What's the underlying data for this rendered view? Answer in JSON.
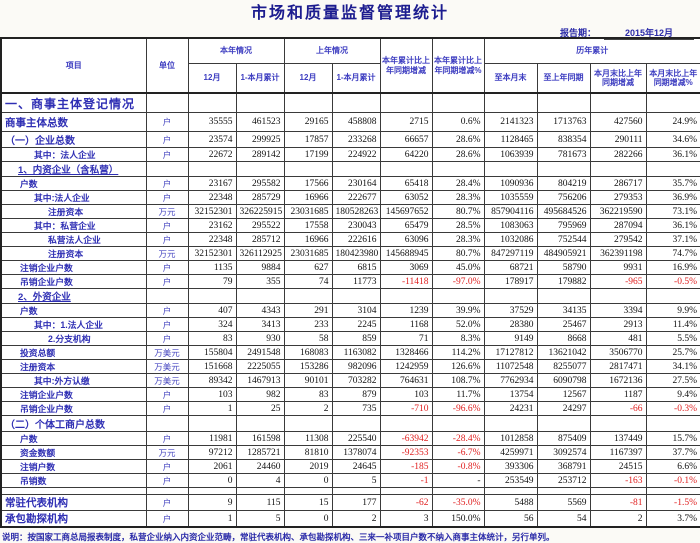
{
  "title": "市场和质量监督管理统计",
  "report_period": {
    "label": "报告期：",
    "value": "2015年12月"
  },
  "header": {
    "item": "项目",
    "unit": "单位",
    "this_year": "本年情况",
    "last_year": "上年情况",
    "month_this": "12月",
    "cum_this": "1-本月累计",
    "month_last": "12月",
    "cum_last": "1-本月累计",
    "yoy_diff": "本年累计比上年同期增减",
    "yoy_pct": "本年累计比上年同期增减%",
    "historical": "历年累计",
    "to_month_end": "至本月末",
    "to_last_same": "至上年同期",
    "me_diff": "本月末比上年同期增减",
    "me_pct": "本月末比上年同期增减%"
  },
  "table": {
    "rows": [
      {
        "type": "section",
        "label": "一、商事主体登记情况",
        "unit": "",
        "vals": [
          "",
          "",
          "",
          "",
          "",
          "",
          "",
          "",
          "",
          ""
        ]
      },
      {
        "type": "total",
        "label": "商事主体总数",
        "unit": "户",
        "vals": [
          "35555",
          "461523",
          "29165",
          "458808",
          "2715",
          "0.6%",
          "2141323",
          "1713763",
          "427560",
          "24.9%"
        ]
      },
      {
        "type": "sub1",
        "label": "（一）企业总数",
        "unit": "户",
        "vals": [
          "23574",
          "299925",
          "17857",
          "233268",
          "66657",
          "28.6%",
          "1128465",
          "838354",
          "290111",
          "34.6%"
        ]
      },
      {
        "type": "item2",
        "label": "其中：法人企业",
        "unit": "户",
        "vals": [
          "22672",
          "289142",
          "17199",
          "224922",
          "64220",
          "28.6%",
          "1063939",
          "781673",
          "282266",
          "36.1%"
        ]
      },
      {
        "type": "group",
        "label": "1、内资企业（含私营）",
        "unit": "",
        "vals": [
          "",
          "",
          "",
          "",
          "",
          "",
          "",
          "",
          "",
          ""
        ]
      },
      {
        "type": "item1",
        "label": "户数",
        "unit": "户",
        "vals": [
          "23167",
          "295582",
          "17566",
          "230164",
          "65418",
          "28.4%",
          "1090936",
          "804219",
          "286717",
          "35.7%"
        ]
      },
      {
        "type": "item2",
        "label": "其中:法人企业",
        "unit": "户",
        "vals": [
          "22348",
          "285729",
          "16966",
          "222677",
          "63052",
          "28.3%",
          "1035559",
          "756206",
          "279353",
          "36.9%"
        ]
      },
      {
        "type": "item3",
        "label": "注册资本",
        "unit": "万元",
        "vals": [
          "32152301",
          "326225915",
          "23031685",
          "180528263",
          "145697652",
          "80.7%",
          "857904116",
          "495684526",
          "362219590",
          "73.1%"
        ]
      },
      {
        "type": "item2",
        "label": "其中：私营企业",
        "unit": "户",
        "vals": [
          "23162",
          "295522",
          "17558",
          "230043",
          "65479",
          "28.5%",
          "1083063",
          "795969",
          "287094",
          "36.1%"
        ]
      },
      {
        "type": "item3",
        "label": "私营法人企业",
        "unit": "户",
        "vals": [
          "22348",
          "285712",
          "16966",
          "222616",
          "63096",
          "28.3%",
          "1032086",
          "752544",
          "279542",
          "37.1%"
        ]
      },
      {
        "type": "item3",
        "label": "注册资本",
        "unit": "万元",
        "vals": [
          "32152301",
          "326112925",
          "23031685",
          "180423980",
          "145688945",
          "80.7%",
          "847297119",
          "484905921",
          "362391198",
          "74.7%"
        ]
      },
      {
        "type": "item1",
        "label": "注销企业户数",
        "unit": "户",
        "vals": [
          "1135",
          "9884",
          "627",
          "6815",
          "3069",
          "45.0%",
          "68721",
          "58790",
          "9931",
          "16.9%"
        ]
      },
      {
        "type": "item1",
        "label": "吊销企业户数",
        "unit": "户",
        "vals": [
          "79",
          "355",
          "74",
          "11773",
          "-11418",
          "-97.0%",
          "178917",
          "179882",
          "-965",
          "-0.5%"
        ]
      },
      {
        "type": "group",
        "label": "2、外资企业",
        "unit": "",
        "vals": [
          "",
          "",
          "",
          "",
          "",
          "",
          "",
          "",
          "",
          ""
        ]
      },
      {
        "type": "item1",
        "label": "户数",
        "unit": "户",
        "vals": [
          "407",
          "4343",
          "291",
          "3104",
          "1239",
          "39.9%",
          "37529",
          "34135",
          "3394",
          "9.9%"
        ]
      },
      {
        "type": "item2",
        "label": "其中：1.法人企业",
        "unit": "户",
        "vals": [
          "324",
          "3413",
          "233",
          "2245",
          "1168",
          "52.0%",
          "28380",
          "25467",
          "2913",
          "11.4%"
        ]
      },
      {
        "type": "item3",
        "label": "2.分支机构",
        "unit": "户",
        "vals": [
          "83",
          "930",
          "58",
          "859",
          "71",
          "8.3%",
          "9149",
          "8668",
          "481",
          "5.5%"
        ]
      },
      {
        "type": "item1",
        "label": "投资总额",
        "unit": "万美元",
        "vals": [
          "155804",
          "2491548",
          "168083",
          "1163082",
          "1328466",
          "114.2%",
          "17127812",
          "13621042",
          "3506770",
          "25.7%"
        ]
      },
      {
        "type": "item1",
        "label": "注册资本",
        "unit": "万美元",
        "vals": [
          "151668",
          "2225055",
          "153286",
          "982096",
          "1242959",
          "126.6%",
          "11072548",
          "8255077",
          "2817471",
          "34.1%"
        ]
      },
      {
        "type": "item2",
        "label": "其中:外方认缴",
        "unit": "万美元",
        "vals": [
          "89342",
          "1467913",
          "90101",
          "703282",
          "764631",
          "108.7%",
          "7762934",
          "6090798",
          "1672136",
          "27.5%"
        ]
      },
      {
        "type": "item1",
        "label": "注销企业户数",
        "unit": "户",
        "vals": [
          "103",
          "982",
          "83",
          "879",
          "103",
          "11.7%",
          "13754",
          "12567",
          "1187",
          "9.4%"
        ]
      },
      {
        "type": "item1",
        "label": "吊销企业户数",
        "unit": "户",
        "vals": [
          "1",
          "25",
          "2",
          "735",
          "-710",
          "-96.6%",
          "24231",
          "24297",
          "-66",
          "-0.3%"
        ]
      },
      {
        "type": "sub1",
        "label": "（二）个体工商户总数",
        "unit": "",
        "vals": [
          "",
          "",
          "",
          "",
          "",
          "",
          "",
          "",
          "",
          ""
        ]
      },
      {
        "type": "item1",
        "label": "户数",
        "unit": "户",
        "vals": [
          "11981",
          "161598",
          "11308",
          "225540",
          "-63942",
          "-28.4%",
          "1012858",
          "875409",
          "137449",
          "15.7%"
        ]
      },
      {
        "type": "item1",
        "label": "资金数额",
        "unit": "万元",
        "vals": [
          "97212",
          "1285721",
          "81810",
          "1378074",
          "-92353",
          "-6.7%",
          "4259971",
          "3092574",
          "1167397",
          "37.7%"
        ]
      },
      {
        "type": "item1",
        "label": "注销户数",
        "unit": "户",
        "vals": [
          "2061",
          "24460",
          "2019",
          "24645",
          "-185",
          "-0.8%",
          "393306",
          "368791",
          "24515",
          "6.6%"
        ]
      },
      {
        "type": "item1",
        "label": "吊销数",
        "unit": "户",
        "vals": [
          "0",
          "4",
          "0",
          "5",
          "-1",
          "-",
          "253549",
          "253712",
          "-163",
          "-0.1%"
        ]
      },
      {
        "type": "blank",
        "label": "",
        "unit": "",
        "vals": [
          "",
          "",
          "",
          "",
          "",
          "",
          "",
          "",
          "",
          ""
        ]
      },
      {
        "type": "major",
        "label": "常驻代表机构",
        "unit": "户",
        "vals": [
          "9",
          "115",
          "15",
          "177",
          "-62",
          "-35.0%",
          "5488",
          "5569",
          "-81",
          "-1.5%"
        ]
      },
      {
        "type": "major",
        "label": "承包勘探机构",
        "unit": "户",
        "vals": [
          "1",
          "5",
          "0",
          "2",
          "3",
          "150.0%",
          "56",
          "54",
          "2",
          "3.7%"
        ]
      }
    ]
  },
  "footnote": "说明：按国家工商总局报表制度，私营企业纳入内资企业范畴，常驻代表机构、承包勘探机构、三来一补项目户数不纳入商事主体统计，另行单列。",
  "colors": {
    "label_blue": "#2f2fb4",
    "title_navy": "#1c1c8f",
    "negative_red": "#e02020"
  }
}
